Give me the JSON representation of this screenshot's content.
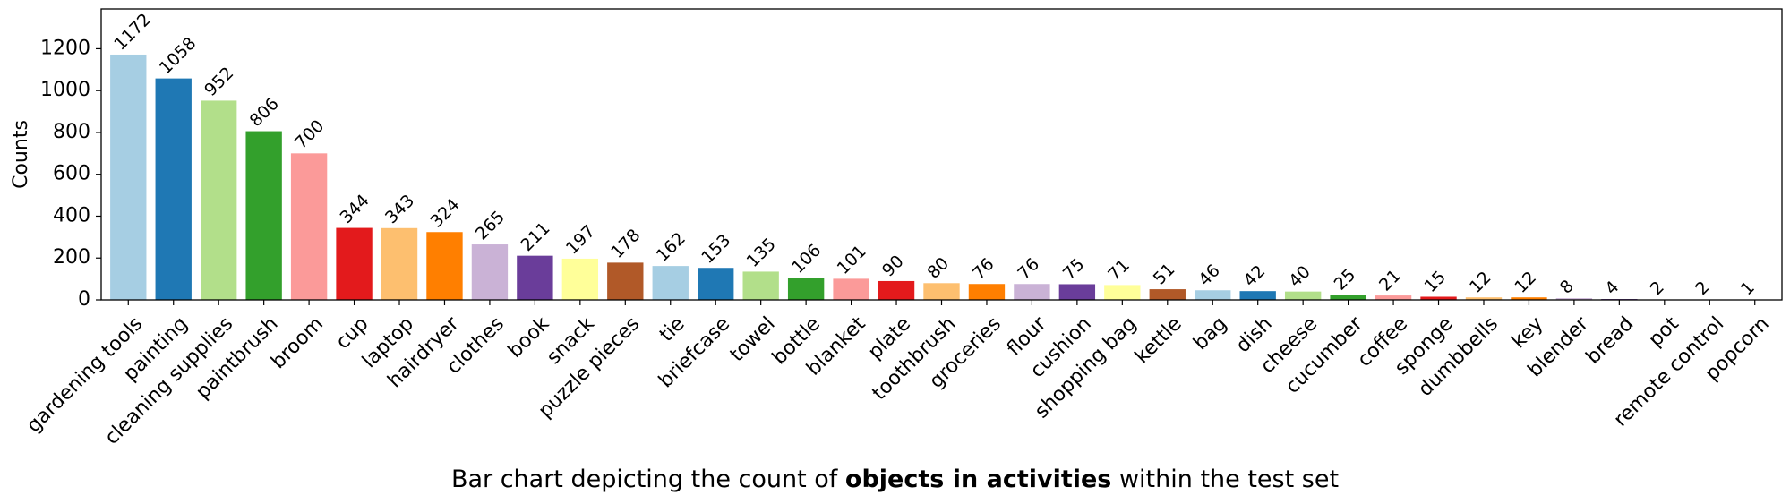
{
  "chart_data": {
    "type": "bar",
    "ylabel": "Counts",
    "xlabel": "",
    "ylim": [
      0,
      1390
    ],
    "yticks": [
      0,
      200,
      400,
      600,
      800,
      1000,
      1200
    ],
    "grid": false,
    "categories": [
      "gardening tools",
      "painting",
      "cleaning supplies",
      "paintbrush",
      "broom",
      "cup",
      "laptop",
      "hairdryer",
      "clothes",
      "book",
      "snack",
      "puzzle pieces",
      "tie",
      "briefcase",
      "towel",
      "bottle",
      "blanket",
      "plate",
      "toothbrush",
      "groceries",
      "flour",
      "cushion",
      "shopping bag",
      "kettle",
      "bag",
      "dish",
      "cheese",
      "cucumber",
      "coffee",
      "sponge",
      "dumbbells",
      "key",
      "blender",
      "bread",
      "pot",
      "remote control",
      "popcorn"
    ],
    "values": [
      1172,
      1058,
      952,
      806,
      700,
      344,
      343,
      324,
      265,
      211,
      197,
      178,
      162,
      153,
      135,
      106,
      101,
      90,
      80,
      76,
      76,
      75,
      71,
      51,
      46,
      42,
      40,
      25,
      21,
      15,
      12,
      12,
      8,
      4,
      2,
      2,
      1
    ],
    "colors": [
      "#a6cee3",
      "#1f78b4",
      "#b2df8a",
      "#33a02c",
      "#fb9a99",
      "#e31a1c",
      "#fdbf6f",
      "#ff7f00",
      "#cab2d6",
      "#6a3d9a",
      "#ffff99",
      "#b15928"
    ]
  },
  "caption": {
    "prefix": "Bar chart depicting the count of ",
    "bold": "objects in activities",
    "suffix": " within the test set"
  }
}
